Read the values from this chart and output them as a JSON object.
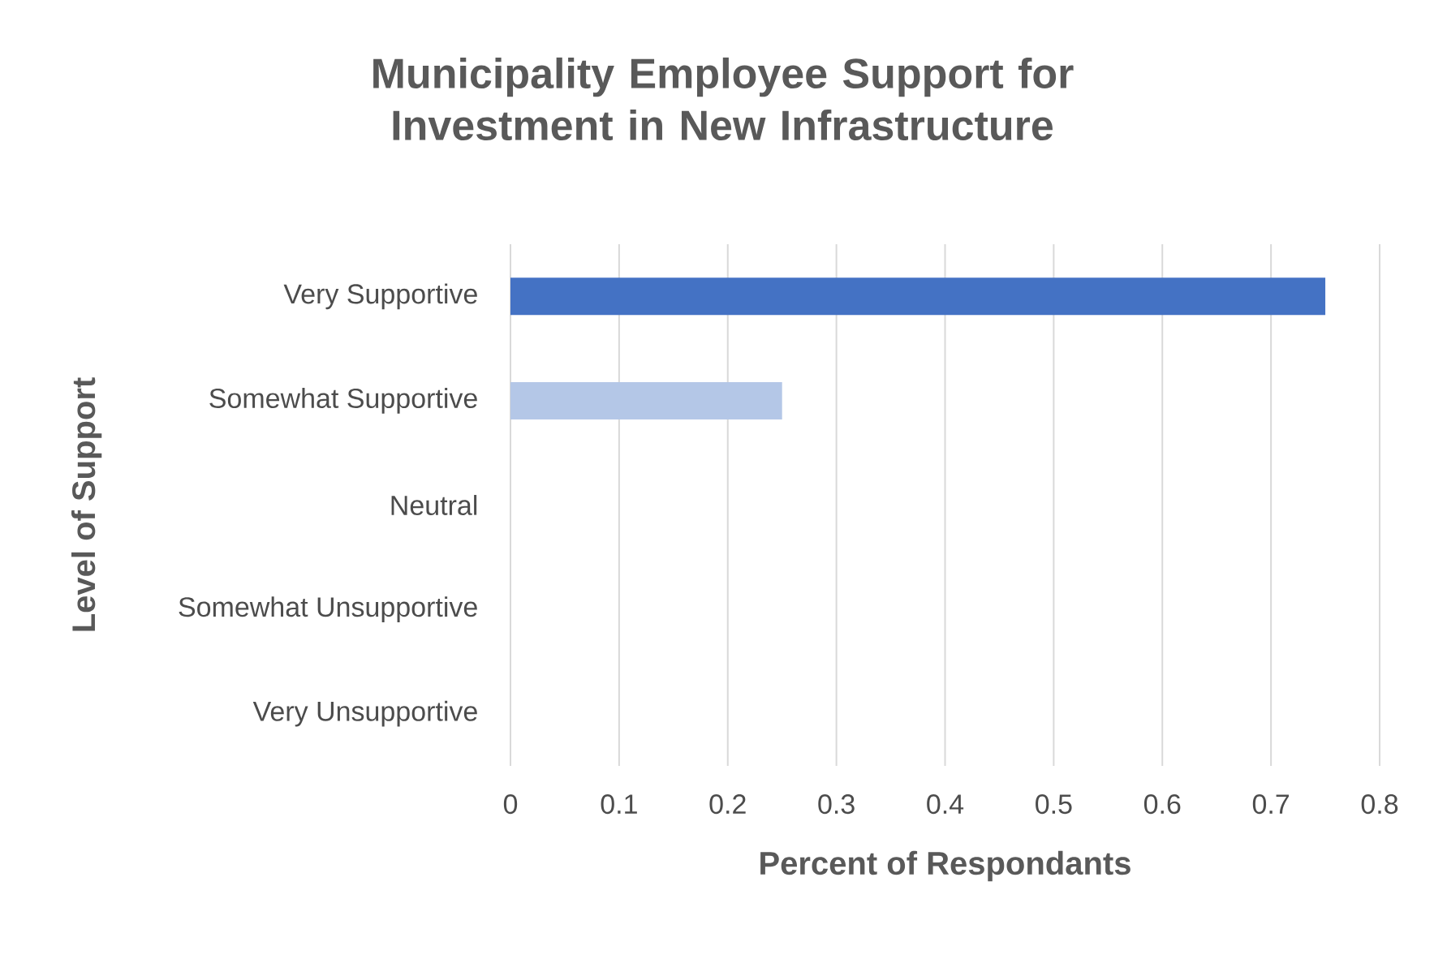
{
  "chart_data": {
    "type": "bar",
    "orientation": "horizontal",
    "title": "Municipality Employee Support for Investment in New Infrastructure",
    "xlabel": "Percent of Respondants",
    "ylabel": "Level of Support",
    "categories": [
      "Very Supportive",
      "Somewhat Supportive",
      "Neutral",
      "Somewhat Unsupportive",
      "Very Unsupportive"
    ],
    "values": [
      0.75,
      0.25,
      0,
      0,
      0
    ],
    "colors": [
      "#4472c4",
      "#b4c7e7",
      "#4472c4",
      "#4472c4",
      "#4472c4"
    ],
    "xlim": [
      0,
      0.8
    ],
    "xticks": [
      0,
      0.1,
      0.2,
      0.3,
      0.4,
      0.5,
      0.6,
      0.7,
      0.8
    ],
    "grid": "x"
  }
}
